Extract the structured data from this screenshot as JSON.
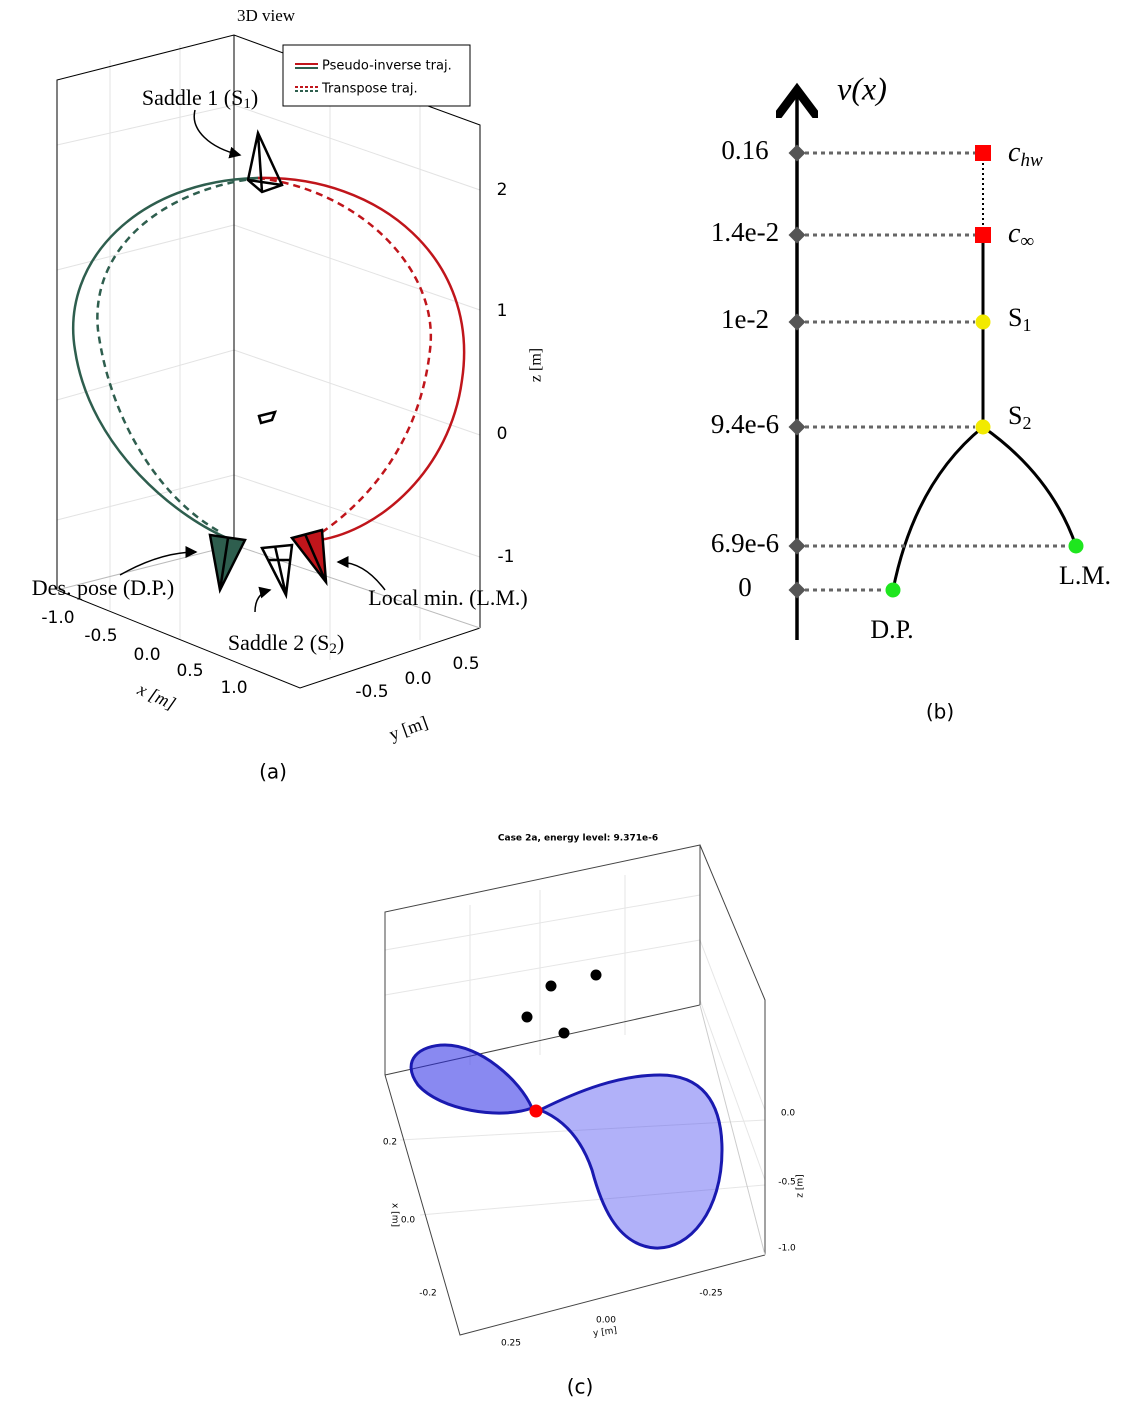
{
  "panel_a": {
    "title": "3D view",
    "legend": [
      "Pseudo-inverse traj.",
      "Transpose traj."
    ],
    "annotations": [
      {
        "text": "Saddle 1 (S",
        "sub": "1",
        "end": ")"
      },
      {
        "text": "Des. pose (D.P.)"
      },
      {
        "text": "Saddle 2 (S",
        "sub": "2",
        "end": ")"
      },
      {
        "text": "Local min. (L.M.)"
      }
    ],
    "z_axis": {
      "label": "z [m]",
      "ticks": [
        "2",
        "1",
        "0",
        "-1"
      ]
    },
    "x_axis": {
      "label": "x [m]",
      "ticks": [
        "-1.0",
        "-0.5",
        "0.0",
        "0.5",
        "1.0"
      ]
    },
    "y_axis": {
      "label": "y [m]",
      "ticks": [
        "-0.5",
        "0.0",
        "0.5"
      ]
    },
    "caption": "(a)"
  },
  "panel_b": {
    "axis_label": "v(x)",
    "levels": [
      "0.16",
      "1.4e-2",
      "1e-2",
      "9.4e-6",
      "6.9e-6",
      "0"
    ],
    "nodes": [
      {
        "text": "c",
        "sub": "hw"
      },
      {
        "text": "c",
        "sub": "∞"
      },
      {
        "text": "S",
        "sub": "1"
      },
      {
        "text": "S",
        "sub": "2"
      },
      {
        "text": "L.M."
      },
      {
        "text": "D.P."
      }
    ],
    "caption": "(b)"
  },
  "panel_c": {
    "title": "Case 2a, energy level: 9.371e-6",
    "x_axis": {
      "label": "x [m]",
      "ticks": [
        "0.2",
        "0.0",
        "-0.2"
      ]
    },
    "y_axis": {
      "label": "y [m]",
      "ticks": [
        "0.25",
        "0.00",
        "-0.25"
      ]
    },
    "z_axis": {
      "label": "z [m]",
      "ticks": [
        "0.0",
        "-0.5",
        "-1.0"
      ]
    },
    "caption": "(c)"
  }
}
